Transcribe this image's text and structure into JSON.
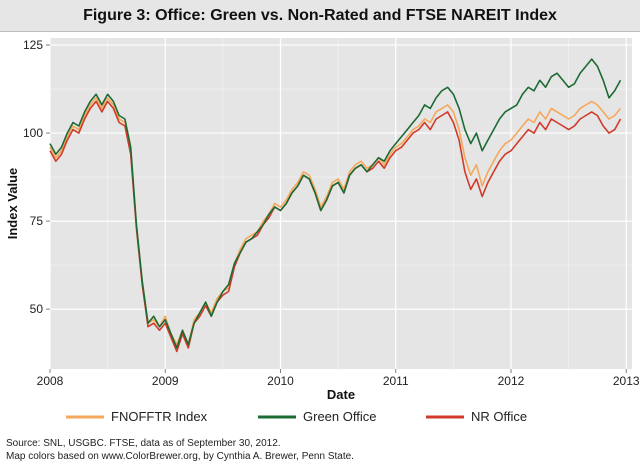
{
  "header": {
    "title": "Figure 3: Office: Green vs. Non-Rated and FTSE NAREIT Index"
  },
  "colors": {
    "panel": "#e5e5e5",
    "grid": "#ffffff",
    "fnofftr": "#f5a85a",
    "green_office": "#1c6b34",
    "nr_office": "#d03a2a"
  },
  "chart_data": {
    "type": "line",
    "xlabel": "Date",
    "ylabel": "Index Value",
    "xlim": [
      2008.0,
      2013.05
    ],
    "ylim": [
      33,
      127
    ],
    "x_ticks": [
      2008,
      2009,
      2010,
      2011,
      2012,
      2013
    ],
    "x_tick_labels": [
      "2008",
      "2009",
      "2010",
      "2011",
      "2012",
      "2013"
    ],
    "y_ticks": [
      50,
      75,
      100,
      125
    ],
    "y_tick_labels": [
      "50",
      "75",
      "100",
      "125"
    ],
    "grid": true,
    "legend_position": "bottom",
    "x": [
      2008.0,
      2008.05,
      2008.1,
      2008.15,
      2008.2,
      2008.25,
      2008.3,
      2008.35,
      2008.4,
      2008.45,
      2008.5,
      2008.55,
      2008.6,
      2008.65,
      2008.7,
      2008.75,
      2008.8,
      2008.85,
      2008.9,
      2008.95,
      2009.0,
      2009.05,
      2009.1,
      2009.15,
      2009.2,
      2009.25,
      2009.3,
      2009.35,
      2009.4,
      2009.45,
      2009.5,
      2009.55,
      2009.6,
      2009.65,
      2009.7,
      2009.75,
      2009.8,
      2009.85,
      2009.9,
      2009.95,
      2010.0,
      2010.05,
      2010.1,
      2010.15,
      2010.2,
      2010.25,
      2010.3,
      2010.35,
      2010.4,
      2010.45,
      2010.5,
      2010.55,
      2010.6,
      2010.65,
      2010.7,
      2010.75,
      2010.8,
      2010.85,
      2010.9,
      2010.95,
      2011.0,
      2011.05,
      2011.1,
      2011.15,
      2011.2,
      2011.25,
      2011.3,
      2011.35,
      2011.4,
      2011.45,
      2011.5,
      2011.55,
      2011.6,
      2011.65,
      2011.7,
      2011.75,
      2011.8,
      2011.85,
      2011.9,
      2011.95,
      2012.0,
      2012.05,
      2012.1,
      2012.15,
      2012.2,
      2012.25,
      2012.3,
      2012.35,
      2012.4,
      2012.45,
      2012.5,
      2012.55,
      2012.6,
      2012.65,
      2012.7,
      2012.75,
      2012.8,
      2012.85,
      2012.9,
      2012.95
    ],
    "series": [
      {
        "name": "FNOFFTR Index",
        "values": [
          96,
          93,
          95,
          99,
          102,
          101,
          105,
          108,
          110,
          107,
          110,
          108,
          104,
          103,
          95,
          74,
          58,
          46,
          47,
          45,
          48,
          43,
          40,
          44,
          40,
          47,
          49,
          52,
          49,
          53,
          55,
          56,
          63,
          67,
          70,
          71,
          72,
          75,
          77,
          80,
          79,
          81,
          84,
          86,
          89,
          88,
          84,
          79,
          82,
          86,
          87,
          84,
          89,
          91,
          92,
          90,
          91,
          93,
          91,
          94,
          96,
          97,
          99,
          101,
          102,
          104,
          103,
          106,
          107,
          108,
          106,
          101,
          93,
          88,
          91,
          85,
          89,
          92,
          95,
          97,
          98,
          100,
          102,
          104,
          103,
          106,
          104,
          107,
          106,
          105,
          104,
          105,
          107,
          108,
          109,
          108,
          106,
          104,
          105,
          107
        ]
      },
      {
        "name": "Green Office",
        "values": [
          97,
          94,
          96,
          100,
          103,
          102,
          106,
          109,
          111,
          108,
          111,
          109,
          105,
          104,
          96,
          74,
          58,
          46,
          48,
          45,
          47,
          43,
          39,
          44,
          40,
          46,
          49,
          52,
          48,
          52,
          55,
          57,
          63,
          66,
          69,
          70,
          72,
          74,
          77,
          79,
          78,
          80,
          83,
          85,
          88,
          87,
          83,
          78,
          81,
          85,
          86,
          83,
          88,
          90,
          91,
          89,
          91,
          93,
          92,
          95,
          97,
          99,
          101,
          103,
          105,
          108,
          107,
          110,
          112,
          113,
          111,
          107,
          101,
          97,
          100,
          95,
          98,
          101,
          104,
          106,
          107,
          108,
          111,
          113,
          112,
          115,
          113,
          116,
          117,
          115,
          113,
          114,
          117,
          119,
          121,
          119,
          115,
          110,
          112,
          115
        ]
      },
      {
        "name": "NR Office",
        "values": [
          95,
          92,
          94,
          98,
          101,
          100,
          104,
          107,
          109,
          106,
          109,
          107,
          103,
          102,
          94,
          73,
          57,
          45,
          46,
          44,
          46,
          42,
          38,
          43,
          39,
          46,
          48,
          51,
          48,
          52,
          54,
          55,
          62,
          66,
          69,
          70,
          71,
          74,
          76,
          79,
          78,
          80,
          83,
          85,
          88,
          87,
          83,
          78,
          81,
          85,
          86,
          83,
          88,
          90,
          91,
          89,
          90,
          92,
          90,
          93,
          95,
          96,
          98,
          100,
          101,
          103,
          101,
          104,
          105,
          106,
          103,
          98,
          89,
          84,
          87,
          82,
          86,
          89,
          92,
          94,
          95,
          97,
          99,
          101,
          100,
          103,
          101,
          104,
          103,
          102,
          101,
          102,
          104,
          105,
          106,
          105,
          102,
          100,
          101,
          104
        ]
      }
    ]
  },
  "legend": {
    "items": [
      "FNOFFTR Index",
      "Green Office",
      "NR Office"
    ]
  },
  "footer": {
    "source_line": "Source:  SNL, USGBC. FTSE, data as of September 30, 2012.",
    "credit_line": "Map colors based on www.ColorBrewer.org, by Cynthia A. Brewer, Penn State."
  }
}
